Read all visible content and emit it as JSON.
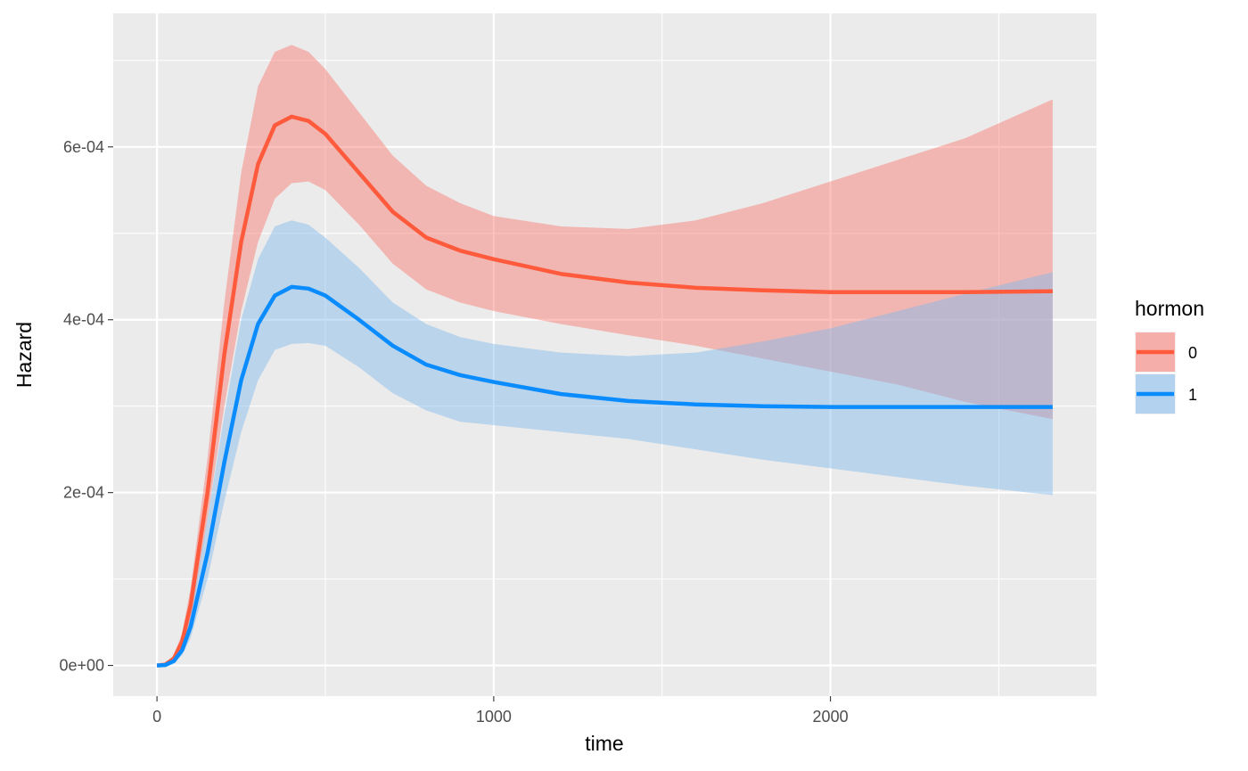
{
  "chart_data": {
    "type": "line",
    "xlabel": "time",
    "ylabel": "Hazard",
    "xlim": [
      -130,
      2790
    ],
    "ylim": [
      -3.55e-05,
      0.0007545
    ],
    "x_ticks": [
      0,
      1000,
      2000
    ],
    "x_tick_labels": [
      "0",
      "1000",
      "2000"
    ],
    "x_minor_ticks": [
      500,
      1500,
      2500
    ],
    "y_ticks": [
      0,
      0.0002,
      0.0004,
      0.0006
    ],
    "y_tick_labels": [
      "0e+00",
      "2e-04",
      "4e-04",
      "6e-04"
    ],
    "y_minor_ticks": [
      0.0001,
      0.0003,
      0.0005,
      0.0007
    ],
    "grid": true,
    "legend": {
      "title": "hormon",
      "position": "right"
    },
    "series": [
      {
        "name": "0",
        "color": "#ff5a3c",
        "band_color": "#f8766d",
        "x": [
          0,
          25,
          50,
          75,
          100,
          150,
          200,
          250,
          300,
          350,
          400,
          450,
          500,
          600,
          700,
          800,
          900,
          1000,
          1200,
          1400,
          1600,
          1800,
          2000,
          2200,
          2400,
          2660
        ],
        "y": [
          0,
          1e-06,
          8e-06,
          2.8e-05,
          7e-05,
          0.0002,
          0.00036,
          0.00049,
          0.00058,
          0.000625,
          0.000635,
          0.00063,
          0.000615,
          0.00057,
          0.000525,
          0.000495,
          0.00048,
          0.00047,
          0.000453,
          0.000443,
          0.000437,
          0.000434,
          0.000432,
          0.000432,
          0.000432,
          0.000433
        ],
        "lower": [
          0,
          5e-07,
          5e-06,
          2e-05,
          5e-05,
          0.00017,
          0.0003,
          0.00041,
          0.00049,
          0.00054,
          0.000558,
          0.00056,
          0.00055,
          0.00051,
          0.000465,
          0.000435,
          0.00042,
          0.00041,
          0.000395,
          0.000382,
          0.00037,
          0.000355,
          0.00034,
          0.000325,
          0.000305,
          0.000285
        ],
        "upper": [
          0,
          2e-06,
          1.2e-05,
          3.8e-05,
          9e-05,
          0.00024,
          0.00042,
          0.00057,
          0.00067,
          0.00071,
          0.000718,
          0.00071,
          0.00069,
          0.00064,
          0.00059,
          0.000555,
          0.000535,
          0.00052,
          0.000508,
          0.000505,
          0.000515,
          0.000535,
          0.00056,
          0.000585,
          0.00061,
          0.000655
        ]
      },
      {
        "name": "1",
        "color": "#0a8cff",
        "band_color": "#7fb8ee",
        "x": [
          0,
          25,
          50,
          75,
          100,
          150,
          200,
          250,
          300,
          350,
          400,
          450,
          500,
          600,
          700,
          800,
          900,
          1000,
          1200,
          1400,
          1600,
          1800,
          2000,
          2200,
          2400,
          2660
        ],
        "y": [
          0,
          5e-07,
          5e-06,
          1.8e-05,
          4.5e-05,
          0.00013,
          0.000235,
          0.00033,
          0.000395,
          0.000428,
          0.000438,
          0.000436,
          0.000428,
          0.0004,
          0.00037,
          0.000348,
          0.000336,
          0.000328,
          0.000314,
          0.000306,
          0.000302,
          0.0003,
          0.000299,
          0.000299,
          0.000299,
          0.000299
        ],
        "lower": [
          0,
          3e-07,
          3e-06,
          1.2e-05,
          3.2e-05,
          0.0001,
          0.00019,
          0.00027,
          0.00033,
          0.000365,
          0.000372,
          0.000373,
          0.00037,
          0.000345,
          0.000315,
          0.000295,
          0.000282,
          0.000278,
          0.00027,
          0.000262,
          0.00025,
          0.000238,
          0.000228,
          0.000218,
          0.000208,
          0.000197
        ],
        "upper": [
          0,
          1e-06,
          8e-06,
          2.5e-05,
          6e-05,
          0.00017,
          0.00029,
          0.0004,
          0.00047,
          0.000508,
          0.000515,
          0.00051,
          0.000495,
          0.00046,
          0.00042,
          0.000395,
          0.00038,
          0.000372,
          0.000362,
          0.000358,
          0.000362,
          0.000375,
          0.00039,
          0.00041,
          0.00043,
          0.000455
        ]
      }
    ]
  }
}
